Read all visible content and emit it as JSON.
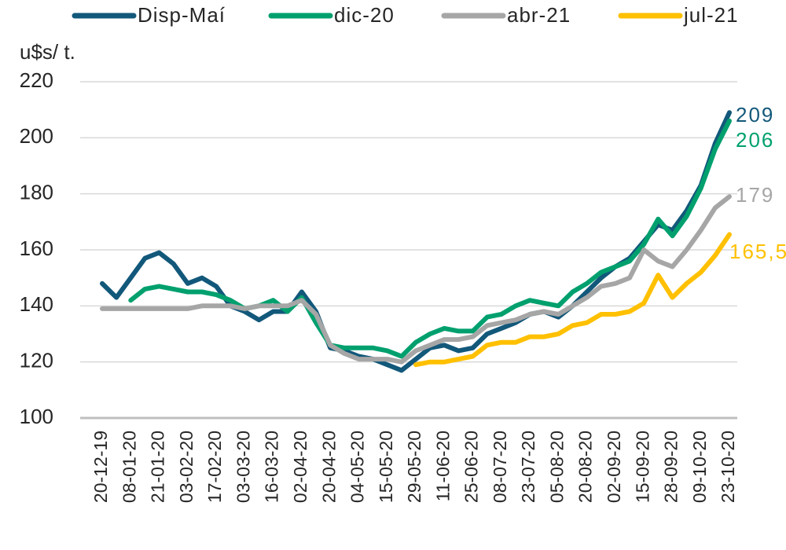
{
  "chart_data": {
    "type": "line",
    "y_label": "u$s/ t.",
    "categories": [
      "20-12-19",
      null,
      "08-01-20",
      null,
      "21-01-20",
      null,
      "03-02-20",
      null,
      "17-02-20",
      null,
      "03-03-20",
      null,
      "16-03-20",
      null,
      "02-04-20",
      null,
      "20-04-20",
      null,
      "04-05-20",
      null,
      "15-05-20",
      null,
      "29-05-20",
      null,
      "11-06-20",
      null,
      "25-06-20",
      null,
      "08-07-20",
      null,
      "23-07-20",
      null,
      "05-08-20",
      null,
      "20-08-20",
      null,
      "02-09-20",
      null,
      "15-09-20",
      null,
      "28-09-20",
      null,
      "09-10-20",
      null,
      "23-10-20"
    ],
    "series": [
      {
        "name": "Disp-Maí",
        "color": "#12587a",
        "values": [
          148,
          143,
          150,
          157,
          159,
          155,
          148,
          150,
          147,
          140,
          138,
          135,
          138,
          138,
          145,
          138,
          125,
          124,
          122,
          121,
          119,
          117,
          121,
          125,
          126,
          124,
          125,
          130,
          132,
          134,
          137,
          138,
          136,
          140,
          145,
          150,
          154,
          157,
          163,
          169,
          167,
          174,
          183,
          198,
          209
        ],
        "value_labels": [
          null,
          null,
          null,
          null,
          null,
          null,
          null,
          null,
          null,
          null,
          null,
          null,
          null,
          null,
          null,
          null,
          null,
          null,
          null,
          null,
          null,
          null,
          null,
          null,
          null,
          null,
          null,
          null,
          null,
          null,
          null,
          null,
          null,
          null,
          null,
          null,
          null,
          null,
          null,
          null,
          null,
          null,
          null,
          null,
          "209"
        ]
      },
      {
        "name": "dic-20",
        "color": "#00a06e",
        "values": [
          null,
          null,
          142,
          146,
          147,
          146,
          145,
          145,
          144,
          142,
          139,
          140,
          142,
          138,
          143,
          134,
          126,
          125,
          125,
          125,
          124,
          122,
          127,
          130,
          132,
          131,
          131,
          136,
          137,
          140,
          142,
          141,
          140,
          145,
          148,
          152,
          154,
          156,
          162,
          171,
          165,
          172,
          182,
          196,
          206
        ],
        "value_labels": [
          null,
          null,
          null,
          null,
          null,
          null,
          null,
          null,
          null,
          null,
          null,
          null,
          null,
          null,
          null,
          null,
          null,
          null,
          null,
          null,
          null,
          null,
          null,
          null,
          null,
          null,
          null,
          null,
          null,
          null,
          null,
          null,
          null,
          null,
          null,
          null,
          null,
          null,
          null,
          null,
          null,
          null,
          null,
          null,
          "206"
        ]
      },
      {
        "name": "abr-21",
        "color": "#a6a6a6",
        "values": [
          139,
          139,
          139,
          139,
          139,
          139,
          139,
          140,
          140,
          140,
          139,
          140,
          140,
          140,
          142,
          137,
          126,
          123,
          121,
          121,
          121,
          120,
          124,
          126,
          128,
          128,
          129,
          133,
          134,
          135,
          137,
          138,
          137,
          140,
          143,
          147,
          148,
          150,
          160,
          156,
          154,
          160,
          167,
          175,
          179
        ],
        "value_labels": [
          null,
          null,
          null,
          null,
          null,
          null,
          null,
          null,
          null,
          null,
          null,
          null,
          null,
          null,
          null,
          null,
          null,
          null,
          null,
          null,
          null,
          null,
          null,
          null,
          null,
          null,
          null,
          null,
          null,
          null,
          null,
          null,
          null,
          null,
          null,
          null,
          null,
          null,
          null,
          null,
          null,
          null,
          null,
          null,
          "179"
        ]
      },
      {
        "name": "jul-21",
        "color": "#ffc000",
        "values": [
          null,
          null,
          null,
          null,
          null,
          null,
          null,
          null,
          null,
          null,
          null,
          null,
          null,
          null,
          null,
          null,
          null,
          null,
          null,
          null,
          null,
          null,
          119,
          120,
          120,
          121,
          122,
          126,
          127,
          127,
          129,
          129,
          130,
          133,
          134,
          137,
          137,
          138,
          141,
          151,
          143,
          148,
          152,
          158,
          165.5
        ],
        "value_labels": [
          null,
          null,
          null,
          null,
          null,
          null,
          null,
          null,
          null,
          null,
          null,
          null,
          null,
          null,
          null,
          null,
          null,
          null,
          null,
          null,
          null,
          null,
          null,
          null,
          null,
          null,
          null,
          null,
          null,
          null,
          null,
          null,
          null,
          null,
          null,
          null,
          null,
          null,
          null,
          null,
          null,
          null,
          null,
          null,
          "165,5"
        ]
      }
    ],
    "ylim": [
      100,
      220
    ],
    "yticks": [
      100,
      120,
      140,
      160,
      180,
      200,
      220
    ],
    "grid": true
  }
}
